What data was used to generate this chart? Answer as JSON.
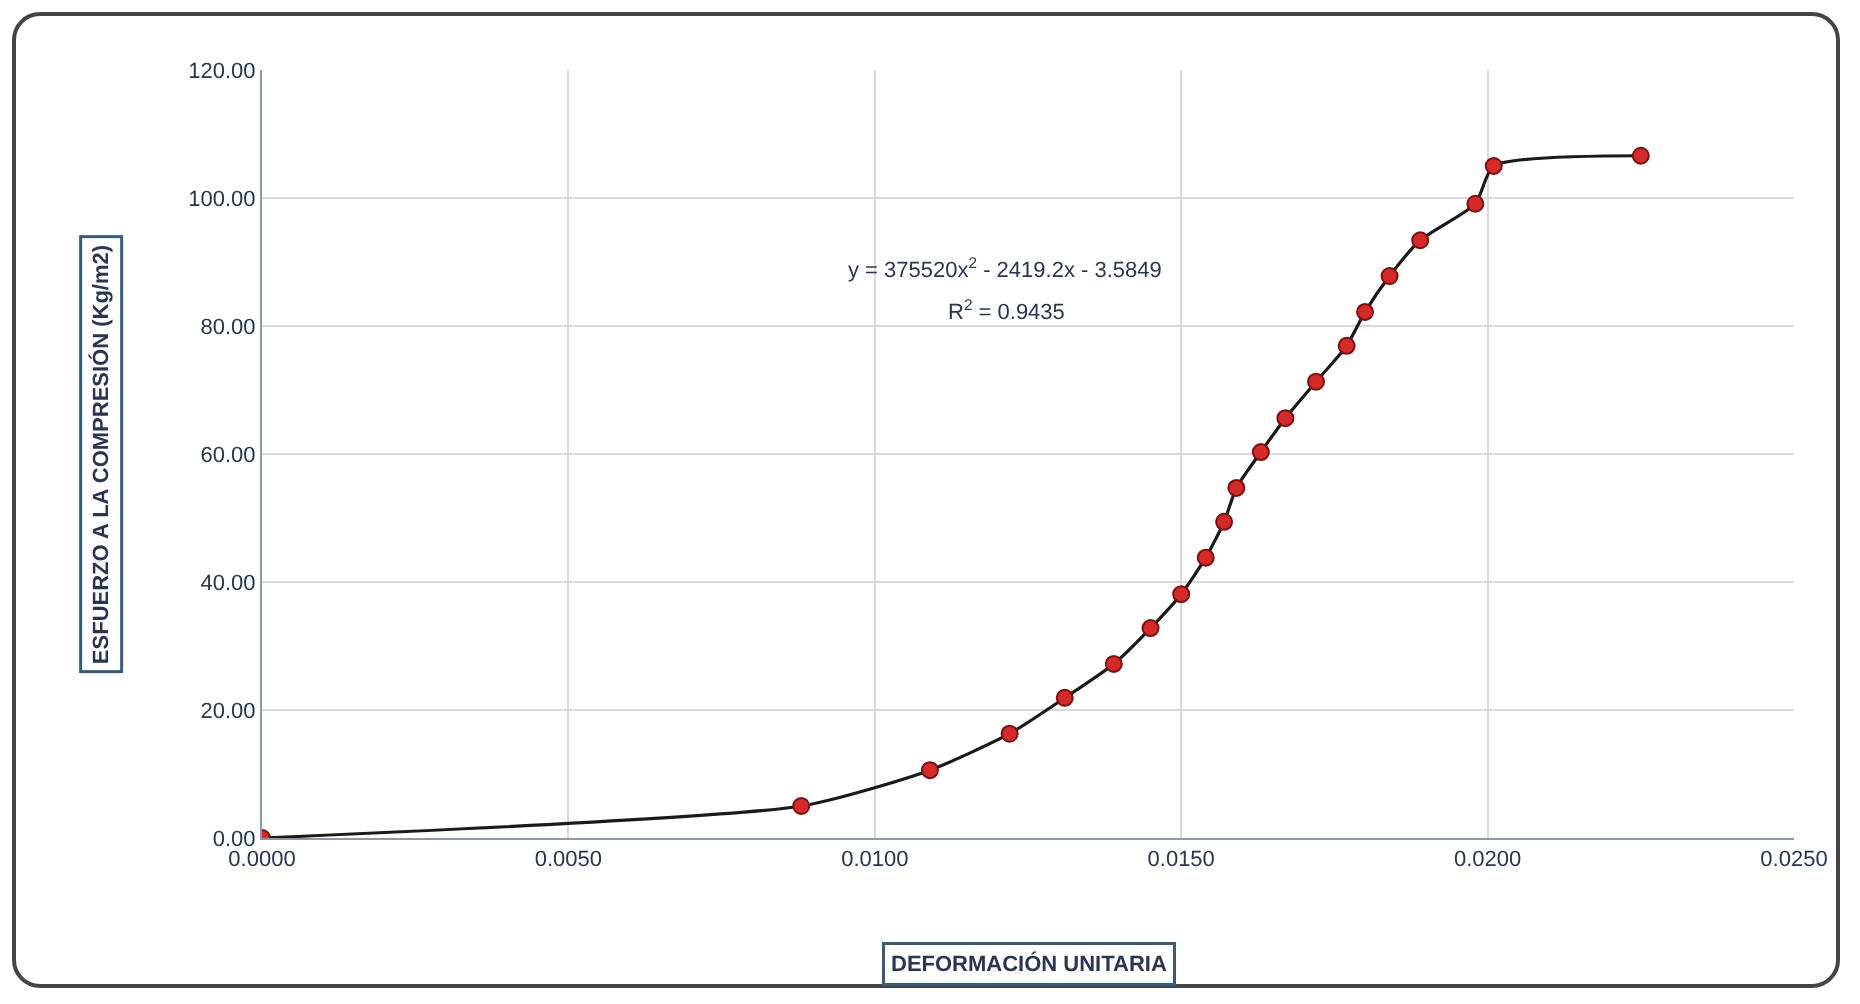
{
  "chart_data": {
    "type": "line",
    "xlabel": "DEFORMACIÓN UNITARIA",
    "ylabel": "ESFUERZO A LA COMPRESIÓN (Kg/m2)",
    "x": [
      0,
      0.0088,
      0.0109,
      0.0122,
      0.0131,
      0.0139,
      0.0145,
      0.015,
      0.0154,
      0.0157,
      0.0159,
      0.0163,
      0.0167,
      0.0172,
      0.0177,
      0.018,
      0.0184,
      0.0189,
      0.0198,
      0.0201,
      0.0225
    ],
    "series": [
      {
        "color": "#d42a2a",
        "values": [
          0,
          5.0,
          10.6,
          16.3,
          21.9,
          27.2,
          32.8,
          38.1,
          43.8,
          49.4,
          54.7,
          60.3,
          65.6,
          71.3,
          76.9,
          82.2,
          87.8,
          93.4,
          99.1,
          105.0,
          106.6
        ]
      }
    ],
    "xlim": [
      0,
      0.025
    ],
    "xticks": [
      {
        "value": 0,
        "label": "0.0000"
      },
      {
        "value": 0.005,
        "label": "0.0050"
      },
      {
        "value": 0.01,
        "label": "0.0100"
      },
      {
        "value": 0.015,
        "label": "0.0150"
      },
      {
        "value": 0.02,
        "label": "0.0200"
      },
      {
        "value": 0.025,
        "label": "0.0250"
      }
    ],
    "ylim": [
      0,
      120
    ],
    "yticks": [
      {
        "value": 0,
        "label": "0.00"
      },
      {
        "value": 20,
        "label": "20.00"
      },
      {
        "value": 40,
        "label": "40.00"
      },
      {
        "value": 60,
        "label": "60.00"
      },
      {
        "value": 80,
        "label": "80.00"
      },
      {
        "value": 100,
        "label": "100.00"
      },
      {
        "value": 120,
        "label": "120.00"
      }
    ],
    "annotations": [
      "y = 375520x$^{2}$ - 2419.2x - 3.5849",
      "R$^{2}$ = 0.9435"
    ],
    "grid": true,
    "marker": "circle",
    "line_style": "solid"
  }
}
